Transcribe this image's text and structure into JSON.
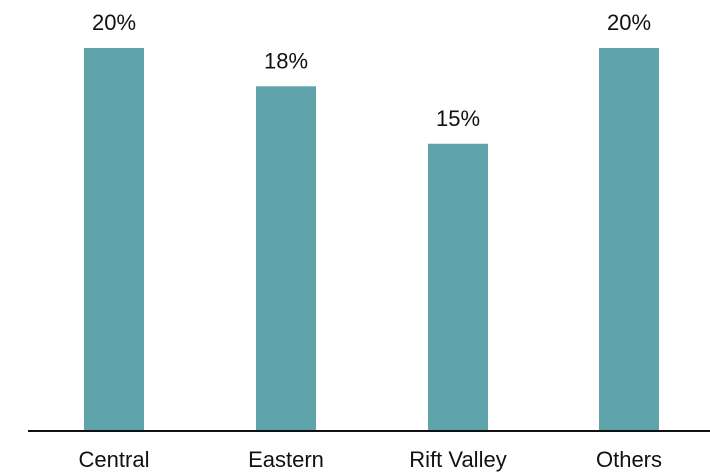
{
  "chart_data": {
    "type": "bar",
    "categories": [
      "Central",
      "Eastern",
      "Rift Valley",
      "Others"
    ],
    "values": [
      20,
      18,
      15,
      20
    ],
    "data_labels": [
      "20%",
      "18%",
      "15%",
      "20%"
    ],
    "title": "",
    "xlabel": "",
    "ylabel": "",
    "ylim": [
      0,
      20
    ],
    "grid": false,
    "bar_color": "#5fa4aa",
    "axis_color": "#111111"
  }
}
